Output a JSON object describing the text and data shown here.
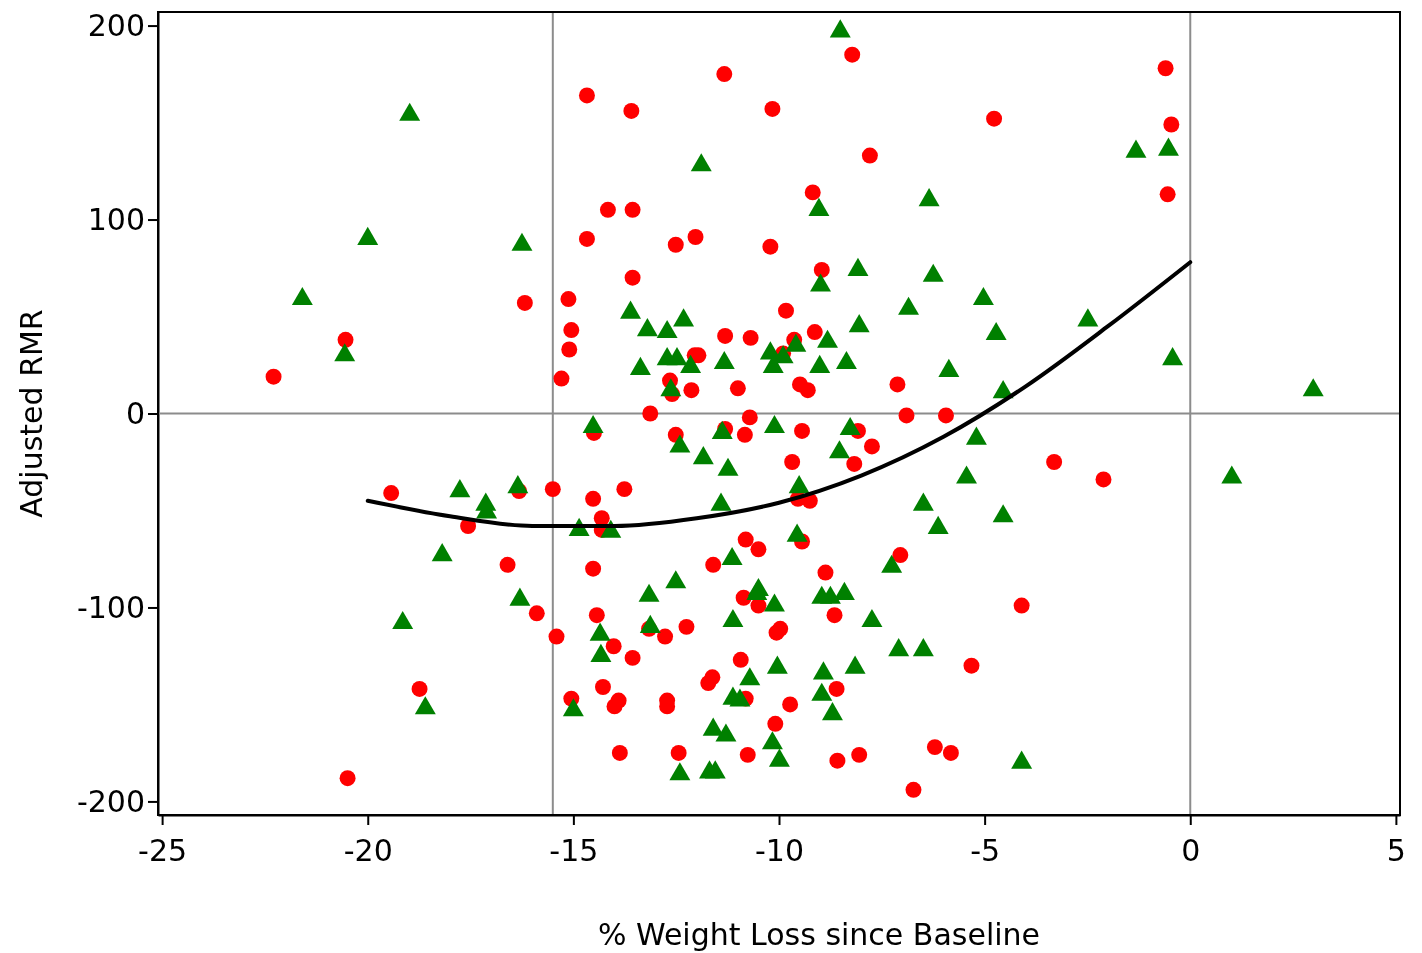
{
  "chart_data": {
    "type": "scatter",
    "xlabel": "% Weight Loss since Baseline",
    "ylabel": "Adjusted RMR",
    "xlim": [
      -25.1,
      5.1
    ],
    "xticks": [
      -25,
      -20,
      -15,
      -10,
      -5,
      0,
      5
    ],
    "ylim": [
      -207,
      207
    ],
    "yticks": [
      -200,
      -100,
      0,
      100,
      200
    ],
    "grid": false,
    "ref_lines": [
      {
        "axis": "x",
        "value": -15.5,
        "color": "#8c8c8c"
      },
      {
        "axis": "x",
        "value": 0,
        "color": "#8c8c8c"
      },
      {
        "axis": "y",
        "value": 0,
        "color": "#8c8c8c"
      }
    ],
    "series": [
      {
        "color": "#ff0000",
        "marker": "circle",
        "x": [
          -22.29,
          -20.54,
          -20.49,
          -19.43,
          -18.74,
          -17.56,
          -16.6,
          -16.32,
          -16.18,
          -15.89,
          -15.5,
          -15.41,
          -15.29,
          -15.12,
          -15.1,
          -15.05,
          -15.05,
          -14.67,
          -14.67,
          -14.52,
          -14.52,
          -14.5,
          -14.43,
          -14.31,
          -14.31,
          -14.28,
          -14.16,
          -14.02,
          -14.0,
          -13.9,
          -13.87,
          -13.76,
          -13.59,
          -13.56,
          -13.56,
          -13.56,
          -13.16,
          -13.13,
          -12.77,
          -12.72,
          -12.72,
          -12.65,
          -12.6,
          -12.51,
          -12.51,
          -12.44,
          -12.25,
          -12.13,
          -12.05,
          -12.03,
          -11.96,
          -11.33,
          -11.72,
          -11.62,
          -11.6,
          -11.31,
          -11.31,
          -11.0,
          -10.93,
          -10.86,
          -10.83,
          -10.81,
          -10.81,
          -10.76,
          -10.71,
          -10.69,
          -10.5,
          -10.5,
          -10.21,
          -10.16,
          -10.09,
          -10.06,
          -9.97,
          -9.9,
          -9.83,
          -9.73,
          -9.68,
          -9.63,
          -9.54,
          -9.49,
          -9.44,
          -9.44,
          -9.3,
          -9.25,
          -9.18,
          -9.13,
          -8.96,
          -8.87,
          -8.65,
          -8.6,
          -8.58,
          -8.22,
          -8.17,
          -8.08,
          -8.05,
          -7.79,
          -7.74,
          -7.12,
          -7.05,
          -6.9,
          -6.73,
          -6.21,
          -5.94,
          -5.82,
          -5.32,
          -4.77,
          -4.1,
          -3.31,
          -2.11,
          -0.6,
          -0.55,
          -0.46
        ],
        "values": [
          19,
          38,
          -188,
          -41,
          -142,
          -58,
          -78,
          -40,
          57,
          -103,
          -39,
          -115,
          18,
          59,
          33,
          43,
          -147,
          164,
          90,
          -44,
          -80,
          -10,
          -104,
          -54,
          -60,
          -141,
          105,
          -120,
          -151,
          -148,
          -175,
          -39,
          156,
          105,
          70,
          -126,
          -111,
          0,
          -115,
          -148,
          -151,
          17,
          10,
          87,
          -11,
          -175,
          -110,
          12,
          30,
          91,
          30,
          175,
          -139,
          -136,
          -78,
          40,
          -8,
          13,
          -127,
          -95,
          -11,
          -65,
          -147,
          -176,
          -2,
          39,
          -70,
          -99,
          86,
          157,
          -160,
          -113,
          -111,
          31,
          53,
          -150,
          -25,
          38,
          -44,
          15,
          -9,
          -66,
          12,
          -45,
          114,
          42,
          74,
          -82,
          -104,
          -142,
          -179,
          185,
          -26,
          -9,
          -176,
          133,
          -17,
          15,
          -73,
          -1,
          -194,
          -172,
          -1,
          -175,
          -130,
          152,
          -99,
          -25,
          -34,
          178,
          113,
          149
        ]
      },
      {
        "color": "#008000",
        "marker": "triangle",
        "x": [
          -21.59,
          -20.56,
          -20.0,
          -19.15,
          -18.98,
          -18.6,
          -18.19,
          -17.76,
          -17.13,
          -17.11,
          -16.35,
          -16.3,
          -16.25,
          -15.0,
          -14.86,
          -14.52,
          -14.35,
          -14.33,
          -14.09,
          -13.61,
          -13.37,
          -13.2,
          -13.16,
          -13.13,
          -12.72,
          -12.72,
          -12.63,
          -12.48,
          -12.51,
          -12.41,
          -12.41,
          -12.32,
          -12.15,
          -11.89,
          -11.84,
          -11.69,
          -11.6,
          -11.55,
          -11.41,
          -11.38,
          -11.33,
          -11.29,
          -11.24,
          -11.14,
          -11.12,
          -11.12,
          -10.95,
          -10.71,
          -10.54,
          -10.5,
          -10.21,
          -10.16,
          -10.14,
          -10.11,
          -10.11,
          -10.04,
          -9.99,
          -9.9,
          -9.59,
          -9.56,
          -9.51,
          -9.03,
          -9.01,
          -8.99,
          -8.96,
          -8.96,
          -8.92,
          -8.82,
          -8.75,
          -8.7,
          -8.53,
          -8.51,
          -8.41,
          -8.36,
          -8.27,
          -8.15,
          -8.08,
          -8.05,
          -7.74,
          -7.26,
          -7.09,
          -6.85,
          -6.49,
          -6.49,
          -6.35,
          -6.25,
          -6.13,
          -5.87,
          -5.44,
          -5.2,
          -5.03,
          -4.72,
          -4.55,
          -4.55,
          -4.1,
          -2.49,
          -1.32,
          -0.53,
          -0.43,
          1.01,
          2.99
        ],
        "values": [
          59,
          30,
          90,
          -108,
          154,
          -152,
          -73,
          -40,
          -47,
          -51,
          -38,
          -96,
          87,
          -153,
          -60,
          -7,
          -114,
          -125,
          -61,
          52,
          23,
          43,
          -94,
          -110,
          42,
          28,
          12,
          28,
          -87,
          -17,
          -186,
          48,
          24,
          128,
          -23,
          -185,
          -163,
          -185,
          -47,
          -10,
          26,
          -166,
          -29,
          -75,
          -107,
          -147,
          -148,
          -137,
          -93,
          -91,
          31,
          -170,
          24,
          -99,
          -7,
          -131,
          -179,
          29,
          35,
          -63,
          -38,
          105,
          24,
          66,
          -95,
          -145,
          -134,
          37,
          -95,
          -155,
          -20,
          197,
          -93,
          26,
          -8,
          -131,
          74,
          45,
          -107,
          -79,
          -122,
          54,
          -122,
          -47,
          110,
          71,
          -59,
          22,
          -33,
          -13,
          59,
          41,
          11,
          -53,
          -180,
          48,
          135,
          136,
          28,
          -33,
          12
        ]
      },
      {
        "type": "line",
        "color": "#000000",
        "marker": "none",
        "line_style": "solid",
        "x": [
          -20,
          -18,
          -16,
          -14,
          -12,
          -10,
          -8,
          -6,
          -4,
          -2,
          0
        ],
        "values": [
          -45,
          -53,
          -58,
          -58,
          -54,
          -46,
          -32,
          -12,
          14,
          45,
          78
        ]
      }
    ]
  }
}
